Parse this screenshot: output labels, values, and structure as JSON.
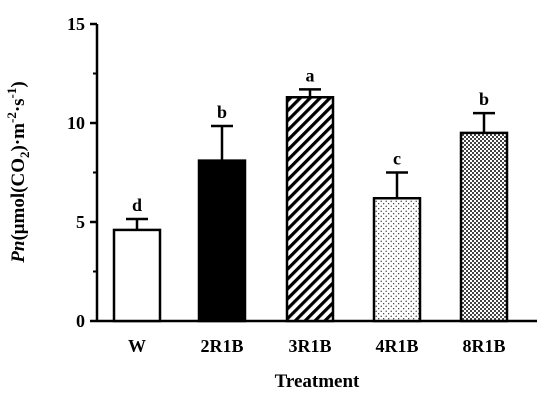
{
  "chart_data": {
    "type": "bar",
    "xlabel": "Treatment",
    "ylabel": {
      "italic": "Pn",
      "unit": "(μmol(CO",
      "sub2": "2",
      "mid": ")·m",
      "sup1": "-2",
      "dot": "·s",
      "sup2": "-1",
      "end": ")"
    },
    "ylim": [
      0,
      15
    ],
    "yticks": [
      0,
      5,
      10,
      15
    ],
    "categories": [
      "W",
      "2R1B",
      "3R1B",
      "4R1B",
      "8R1B"
    ],
    "values": [
      4.6,
      8.1,
      11.3,
      6.2,
      9.5
    ],
    "errors": [
      0.55,
      1.75,
      0.4,
      1.3,
      1.0
    ],
    "letters": [
      "d",
      "b",
      "a",
      "c",
      "b"
    ],
    "fills": [
      "none",
      "solid",
      "diagonal-stripes",
      "dots",
      "crosshatch"
    ],
    "colors": {
      "ink": "#000000",
      "background": "#ffffff"
    },
    "grid": false,
    "legend": "none"
  }
}
